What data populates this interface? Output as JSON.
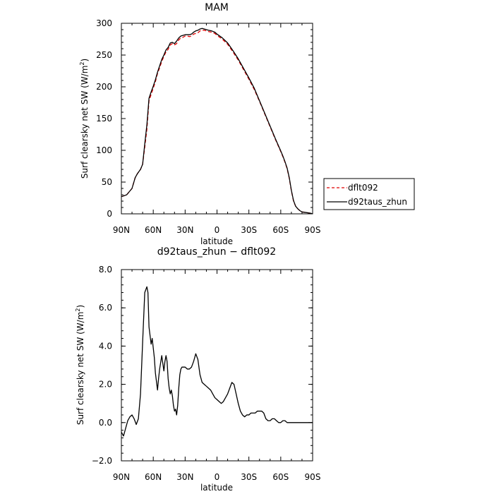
{
  "chart_data": [
    {
      "type": "line",
      "title": "MAM",
      "xlabel": "latitude",
      "ylabel": "Surf clearsky net SW (W/m",
      "ylabel_superscript": "2",
      "ylabel_close": ")",
      "xlim": [
        90,
        -90
      ],
      "ylim": [
        0,
        300
      ],
      "x_ticks": [
        90,
        60,
        30,
        0,
        -30,
        -60,
        -90
      ],
      "x_tick_labels": [
        "90N",
        "60N",
        "30N",
        "0",
        "30S",
        "60S",
        "90S"
      ],
      "y_ticks": [
        0,
        50,
        100,
        150,
        200,
        250,
        300
      ],
      "y_tick_labels": [
        "0",
        "50",
        "100",
        "150",
        "200",
        "250",
        "300"
      ],
      "legend": "outside-right",
      "series": [
        {
          "name": "dflt092",
          "color": "#e00000",
          "dash": "dashed",
          "x": [
            90,
            85,
            80,
            77,
            75,
            72,
            70,
            68,
            66,
            64,
            62,
            60,
            58,
            56,
            54,
            52,
            50,
            48,
            46,
            44,
            42,
            40,
            38,
            36,
            34,
            32,
            30,
            28,
            26,
            24,
            22,
            20,
            18,
            16,
            14,
            12,
            10,
            8,
            5,
            2,
            0,
            -5,
            -10,
            -15,
            -20,
            -25,
            -30,
            -35,
            -40,
            -45,
            -50,
            -55,
            -60,
            -62,
            -64,
            -66,
            -68,
            -70,
            -72,
            -74,
            -76,
            -78,
            -80,
            -84,
            -88,
            -90
          ],
          "y": [
            27,
            30,
            40,
            57,
            63,
            70,
            78,
            105,
            133,
            178,
            188,
            198,
            208,
            221,
            230,
            240,
            248,
            255,
            259,
            266,
            268,
            266,
            268,
            274,
            277,
            278,
            280,
            280,
            279,
            280,
            283,
            284,
            285,
            288,
            289,
            289,
            288,
            287,
            286,
            284,
            281,
            275,
            267,
            255,
            242,
            227,
            212,
            196,
            177,
            157,
            137,
            117,
            98,
            90,
            81,
            71,
            56,
            36,
            20,
            12,
            8,
            5,
            3,
            2,
            1,
            0
          ]
        },
        {
          "name": "d92taus_zhun",
          "color": "#000000",
          "dash": "solid",
          "x": [
            90,
            85,
            80,
            77,
            75,
            72,
            70,
            68,
            66,
            64,
            62,
            60,
            58,
            56,
            54,
            52,
            50,
            48,
            46,
            44,
            42,
            40,
            38,
            36,
            34,
            32,
            30,
            28,
            26,
            24,
            22,
            20,
            18,
            16,
            14,
            12,
            10,
            8,
            5,
            2,
            0,
            -5,
            -10,
            -15,
            -20,
            -25,
            -30,
            -35,
            -40,
            -45,
            -50,
            -55,
            -60,
            -62,
            -64,
            -66,
            -68,
            -70,
            -72,
            -74,
            -76,
            -78,
            -80,
            -84,
            -88,
            -90
          ],
          "y": [
            27,
            30,
            40,
            57,
            63,
            70,
            78,
            110,
            140,
            182,
            192,
            201,
            211,
            223,
            233,
            243,
            250,
            258,
            262,
            269,
            270,
            268,
            272,
            277,
            280,
            281,
            282,
            282,
            282,
            283,
            286,
            288,
            289,
            291,
            292,
            291,
            290,
            289,
            288,
            286,
            283,
            277,
            269,
            257,
            244,
            229,
            214,
            198,
            178,
            158,
            138,
            118,
            99,
            91,
            82,
            72,
            57,
            37,
            21,
            12,
            8,
            5,
            3,
            2,
            1,
            0
          ]
        }
      ]
    },
    {
      "type": "line",
      "title": "d92taus_zhun − dflt092",
      "xlabel": "latitude",
      "ylabel": "Surf clearsky net SW (W/m",
      "ylabel_superscript": "2",
      "ylabel_close": ")",
      "xlim": [
        90,
        -90
      ],
      "ylim": [
        -2,
        8
      ],
      "x_ticks": [
        90,
        60,
        30,
        0,
        -30,
        -60,
        -90
      ],
      "x_tick_labels": [
        "90N",
        "60N",
        "30N",
        "0",
        "30S",
        "60S",
        "90S"
      ],
      "y_ticks": [
        -2,
        0,
        2,
        4,
        6,
        8
      ],
      "y_tick_labels": [
        "−2.0",
        "0.0",
        "2.0",
        "4.0",
        "6.0",
        "8.0"
      ],
      "series": [
        {
          "color": "#000000",
          "dash": "solid",
          "x": [
            90,
            88,
            86,
            84,
            82,
            80,
            78,
            76,
            74,
            72,
            70,
            68,
            66,
            65,
            64,
            62,
            61,
            60,
            59,
            58,
            56,
            55,
            54,
            52,
            50,
            49,
            48,
            47,
            46,
            45,
            44,
            43,
            42,
            41,
            40,
            39,
            38,
            37,
            36,
            35,
            34,
            33,
            32,
            30,
            28,
            26,
            24,
            22,
            20,
            18,
            16,
            14,
            12,
            10,
            8,
            6,
            4,
            2,
            0,
            -2,
            -4,
            -6,
            -8,
            -10,
            -12,
            -14,
            -16,
            -18,
            -20,
            -22,
            -24,
            -26,
            -28,
            -30,
            -32,
            -34,
            -36,
            -38,
            -40,
            -42,
            -44,
            -46,
            -48,
            -50,
            -52,
            -54,
            -56,
            -58,
            -60,
            -62,
            -64,
            -66,
            -68,
            -70,
            -72,
            -74,
            -76,
            -78,
            -80,
            -82,
            -84,
            -86,
            -88,
            -90
          ],
          "y": [
            -0.5,
            -0.7,
            -0.3,
            0.1,
            0.3,
            0.4,
            0.2,
            -0.1,
            0.2,
            1.5,
            4.2,
            6.8,
            7.1,
            6.8,
            5.0,
            4.1,
            4.4,
            3.9,
            3.4,
            2.6,
            1.7,
            2.3,
            2.8,
            3.5,
            2.7,
            3.2,
            3.5,
            3.2,
            2.3,
            1.8,
            1.5,
            1.7,
            1.4,
            0.9,
            0.6,
            0.7,
            0.4,
            0.9,
            1.8,
            2.5,
            2.8,
            2.9,
            2.9,
            2.9,
            2.8,
            2.8,
            2.9,
            3.2,
            3.6,
            3.3,
            2.5,
            2.1,
            2.0,
            1.9,
            1.8,
            1.7,
            1.5,
            1.3,
            1.2,
            1.1,
            1.0,
            1.1,
            1.3,
            1.5,
            1.8,
            2.1,
            2.0,
            1.5,
            1.0,
            0.6,
            0.4,
            0.3,
            0.4,
            0.4,
            0.5,
            0.5,
            0.5,
            0.6,
            0.6,
            0.6,
            0.5,
            0.2,
            0.1,
            0.1,
            0.2,
            0.2,
            0.1,
            0.0,
            0.0,
            0.1,
            0.1,
            0.0,
            0.0,
            0.0,
            0.0,
            0.0,
            0.0,
            0.0,
            0.0,
            0.0,
            0.0,
            0.0,
            0.0,
            0.0
          ]
        }
      ]
    }
  ]
}
